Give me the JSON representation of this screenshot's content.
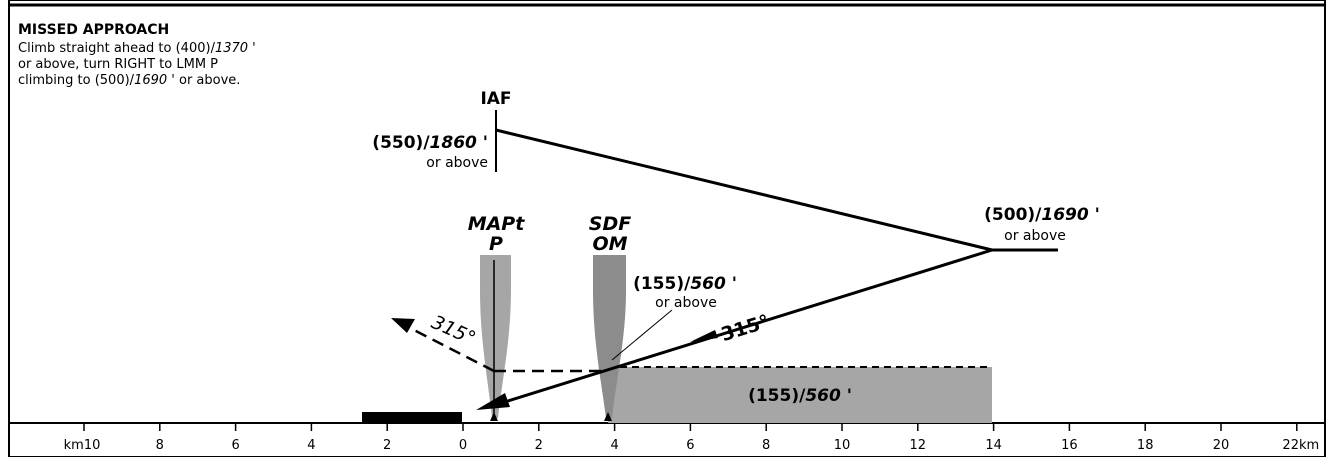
{
  "missed_approach": {
    "heading": "MISSED APPROACH",
    "lines": [
      [
        "Climb straight ahead to (400)",
        "/",
        "1370",
        " '"
      ],
      [
        "or above, turn RIGHT to LMM P"
      ],
      [
        "climbing to (500)",
        "/",
        "1690",
        " ' or above."
      ]
    ]
  },
  "fixes": {
    "iaf": {
      "name": "IAF",
      "alt_height": "(550)",
      "slash": "/",
      "alt": "1860",
      "tick": " '",
      "qualifier": "or above"
    },
    "turn": {
      "alt_height": "(500)",
      "slash": "/",
      "alt": "1690",
      "tick": " '",
      "qualifier": "or above"
    },
    "sdf": {
      "name1": "SDF",
      "name2": "OM",
      "alt_height": "(155)",
      "slash": "/",
      "alt": "560",
      "tick": " '",
      "qualifier": "or above"
    },
    "mapt": {
      "name1": "MAPt",
      "name2": "P"
    }
  },
  "track": {
    "inbound": "315°",
    "missed": "315°"
  },
  "box": {
    "alt_height": "(155)",
    "slash": "/",
    "alt": "560",
    "tick": " '"
  },
  "scale": {
    "ticks": [
      "km10",
      "8",
      "6",
      "4",
      "2",
      "0",
      "2",
      "4",
      "6",
      "8",
      "10",
      "12",
      "14",
      "16",
      "18",
      "20",
      "22km"
    ]
  },
  "colors": {
    "ink": "#000000",
    "fill_gray": "#a6a6a6",
    "beam_gray": "#8c8c8c"
  }
}
